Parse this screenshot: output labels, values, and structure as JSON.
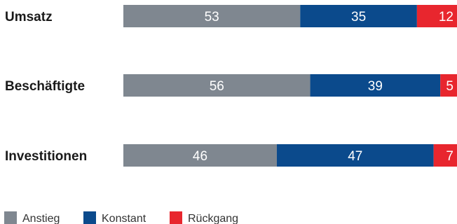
{
  "chart_data": {
    "type": "bar",
    "orientation": "horizontal",
    "stacked": true,
    "categories": [
      "Umsatz",
      "Beschäftigte",
      "Investitionen"
    ],
    "series": [
      {
        "name": "Anstieg",
        "values": [
          53,
          56,
          46
        ],
        "color": "#7f8790"
      },
      {
        "name": "Konstant",
        "values": [
          35,
          39,
          47
        ],
        "color": "#0b4a8c"
      },
      {
        "name": "Rückgang",
        "values": [
          12,
          5,
          7
        ],
        "color": "#e8262e"
      }
    ],
    "xlim": [
      0,
      100
    ],
    "grid": false,
    "legend_position": "bottom-left"
  }
}
